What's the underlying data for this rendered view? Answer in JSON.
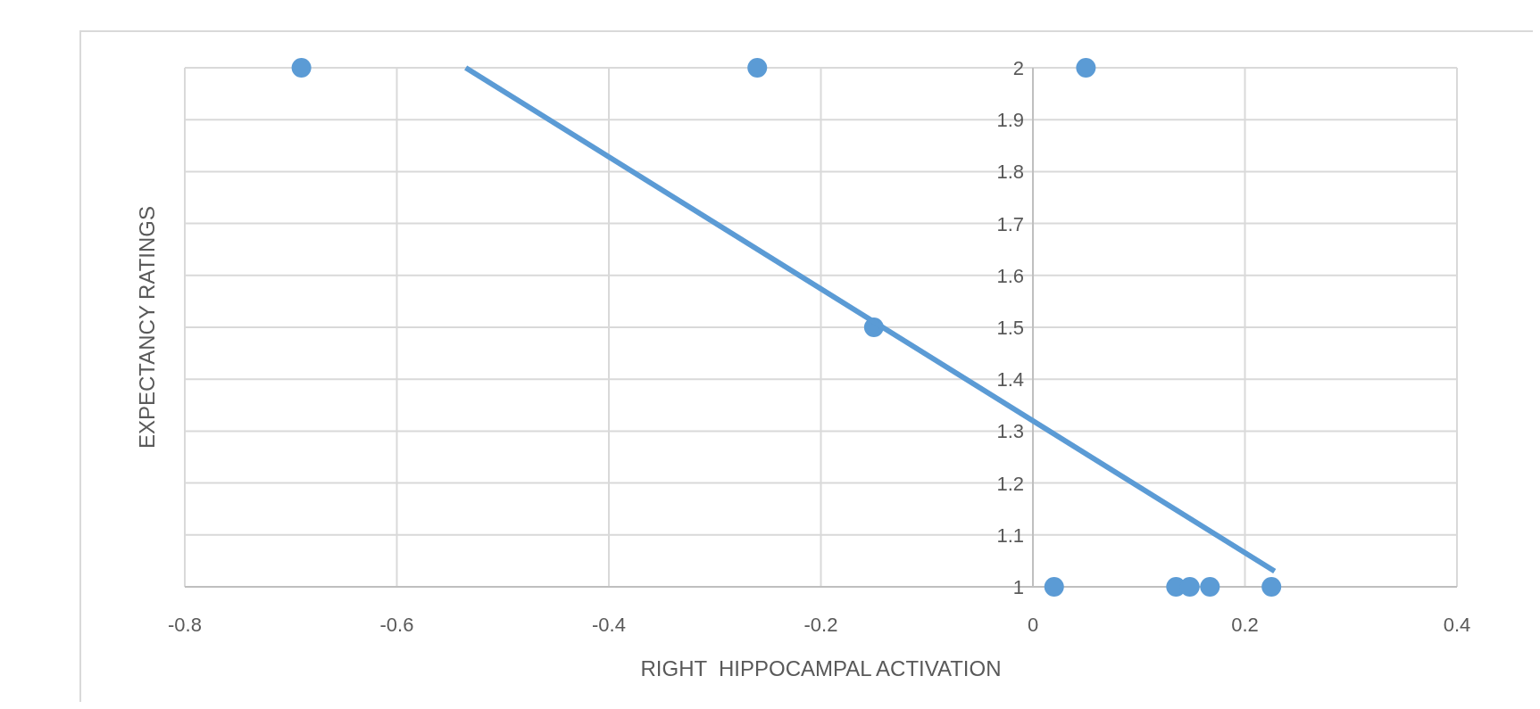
{
  "chart_data": {
    "type": "scatter",
    "xlabel": "RIGHT  HIPPOCAMPAL ACTIVATION",
    "ylabel": "EXPECTANCY RATINGS",
    "series": [
      {
        "color": "#5b9bd5",
        "marker": "circle",
        "x": [
          -0.69,
          -0.26,
          0.05,
          -0.15,
          0.02,
          0.135,
          0.148,
          0.167,
          0.225
        ],
        "values": [
          2,
          2,
          2,
          1.5,
          1,
          1,
          1,
          1,
          1
        ]
      },
      {
        "type": "line",
        "color": "#5b9bd5",
        "x": [
          -0.535,
          0.228
        ],
        "values": [
          2,
          1.03
        ]
      }
    ],
    "xlim": [
      -0.8,
      0.4
    ],
    "xticks": [
      -0.8,
      -0.6,
      -0.4,
      -0.2,
      0,
      0.2,
      0.4
    ],
    "ylim": [
      1,
      2
    ],
    "yticks": [
      1,
      1.1,
      1.2,
      1.3,
      1.4,
      1.5,
      1.6,
      1.7,
      1.8,
      1.9,
      2
    ],
    "grid": true
  }
}
